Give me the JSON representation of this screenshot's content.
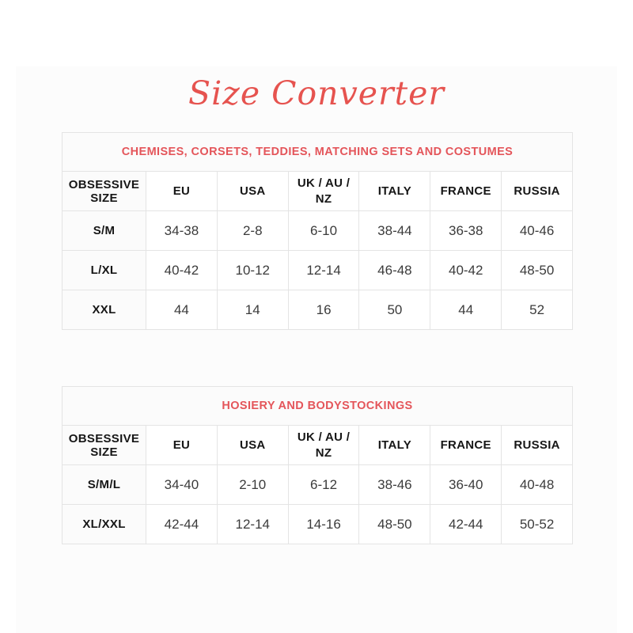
{
  "page": {
    "title": "Size Converter",
    "accent_color": "#e5534f",
    "border_color": "#e4e4e4",
    "surface_color": "#fcfcfc"
  },
  "columns": [
    "OBSESSIVE SIZE",
    "EU",
    "USA",
    "UK / AU / NZ",
    "ITALY",
    "FRANCE",
    "RUSSIA"
  ],
  "tables": [
    {
      "caption": "CHEMISES, CORSETS, TEDDIES, MATCHING SETS AND COSTUMES",
      "rows": [
        {
          "size": "S/M",
          "values": [
            "34-38",
            "2-8",
            "6-10",
            "38-44",
            "36-38",
            "40-46"
          ]
        },
        {
          "size": "L/XL",
          "values": [
            "40-42",
            "10-12",
            "12-14",
            "46-48",
            "40-42",
            "48-50"
          ]
        },
        {
          "size": "XXL",
          "values": [
            "44",
            "14",
            "16",
            "50",
            "44",
            "52"
          ]
        }
      ]
    },
    {
      "caption": "HOSIERY AND BODYSTOCKINGS",
      "rows": [
        {
          "size": "S/M/L",
          "values": [
            "34-40",
            "2-10",
            "6-12",
            "38-46",
            "36-40",
            "40-48"
          ]
        },
        {
          "size": "XL/XXL",
          "values": [
            "42-44",
            "12-14",
            "14-16",
            "48-50",
            "42-44",
            "50-52"
          ]
        }
      ]
    }
  ]
}
